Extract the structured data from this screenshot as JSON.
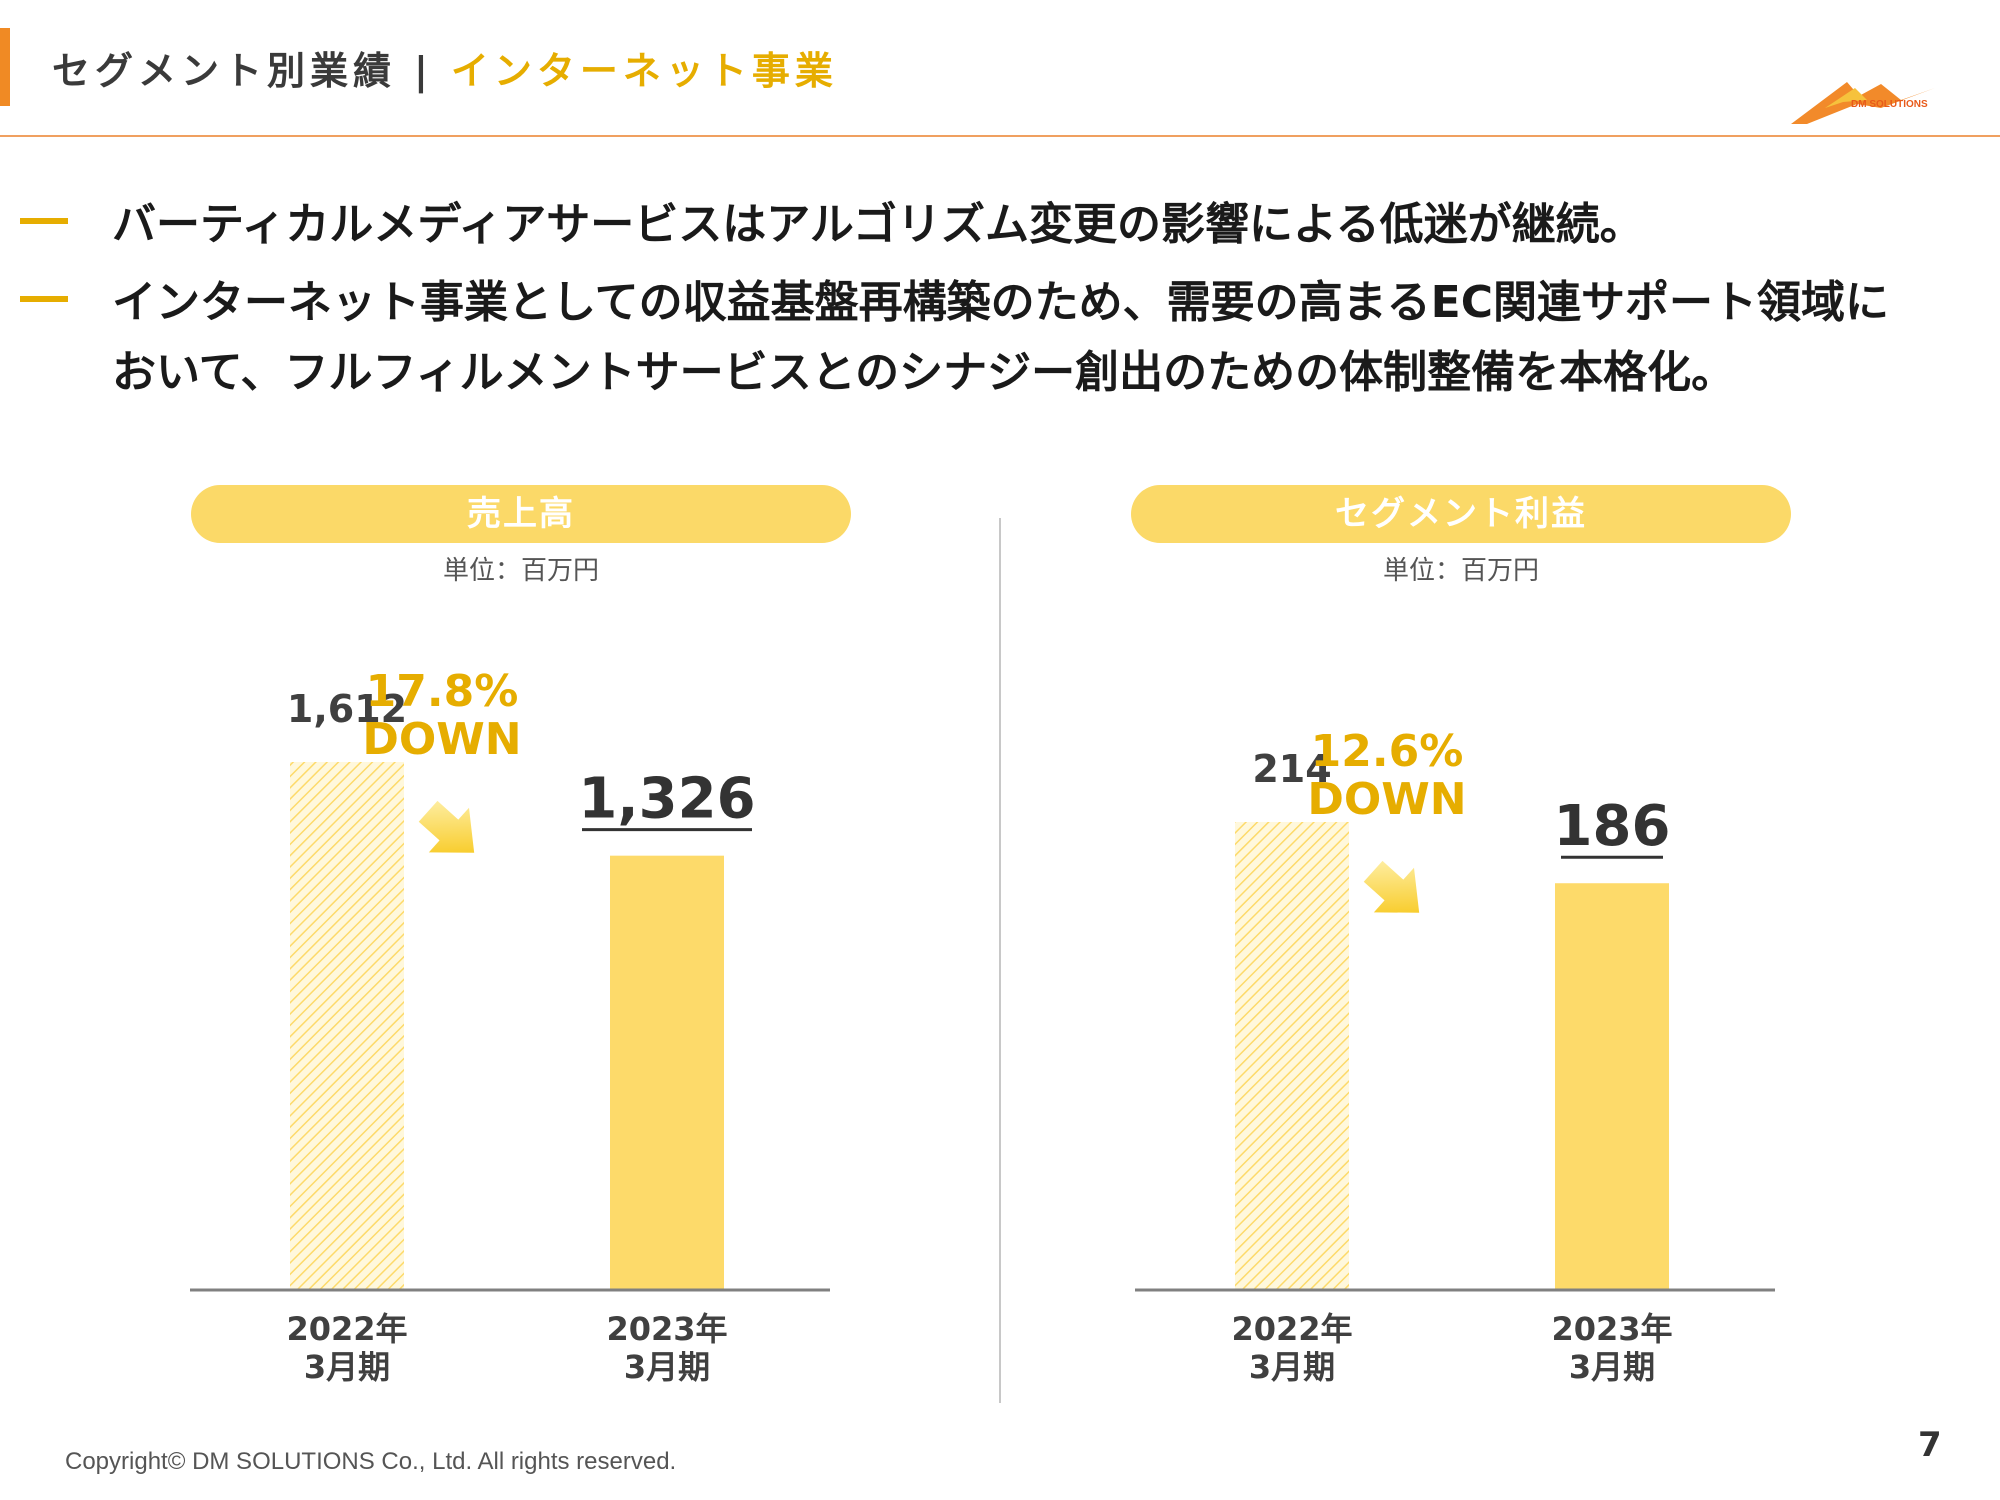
{
  "header": {
    "title_main": "セグメント別業績",
    "separator": "|",
    "title_sub": "インターネット事業",
    "logo_text": "DM SOLUTIONS",
    "colors": {
      "accent": "#f08a24",
      "highlight": "#e6ad00"
    }
  },
  "bullets": [
    {
      "text": "バーティカルメディアサービスはアルゴリズム変更の影響による低迷が継続。"
    },
    {
      "text": "インターネット事業としての収益基盤再構築のため、需要の高まるEC関連サポート領域に\nおいて、フルフィルメントサービスとのシナジー創出のための体制整備を本格化。"
    }
  ],
  "chart_data": [
    {
      "type": "bar",
      "title": "売上高",
      "unit": "単位：百万円",
      "categories": [
        [
          "2022年",
          "3月期"
        ],
        [
          "2023年",
          "3月期"
        ]
      ],
      "values": [
        1612,
        1326
      ],
      "value_labels": [
        "1,612",
        "1,326"
      ],
      "change_label": [
        "17.8%",
        "DOWN"
      ],
      "bar_styles": [
        "hatched",
        "solid"
      ],
      "bar_color": "#fdda6a",
      "label_color": "#e6ad00",
      "ylim": [
        0,
        1612
      ]
    },
    {
      "type": "bar",
      "title": "セグメント利益",
      "unit": "単位：百万円",
      "categories": [
        [
          "2022年",
          "3月期"
        ],
        [
          "2023年",
          "3月期"
        ]
      ],
      "values": [
        214,
        186
      ],
      "value_labels": [
        "214",
        "186"
      ],
      "change_label": [
        "12.6%",
        "DOWN"
      ],
      "bar_styles": [
        "hatched",
        "solid"
      ],
      "bar_color": "#fdda6a",
      "label_color": "#e6ad00",
      "ylim": [
        0,
        214
      ]
    }
  ],
  "footer": {
    "copyright": "Copyright© DM SOLUTIONS Co., Ltd. All rights reserved.",
    "page_number": "7"
  }
}
